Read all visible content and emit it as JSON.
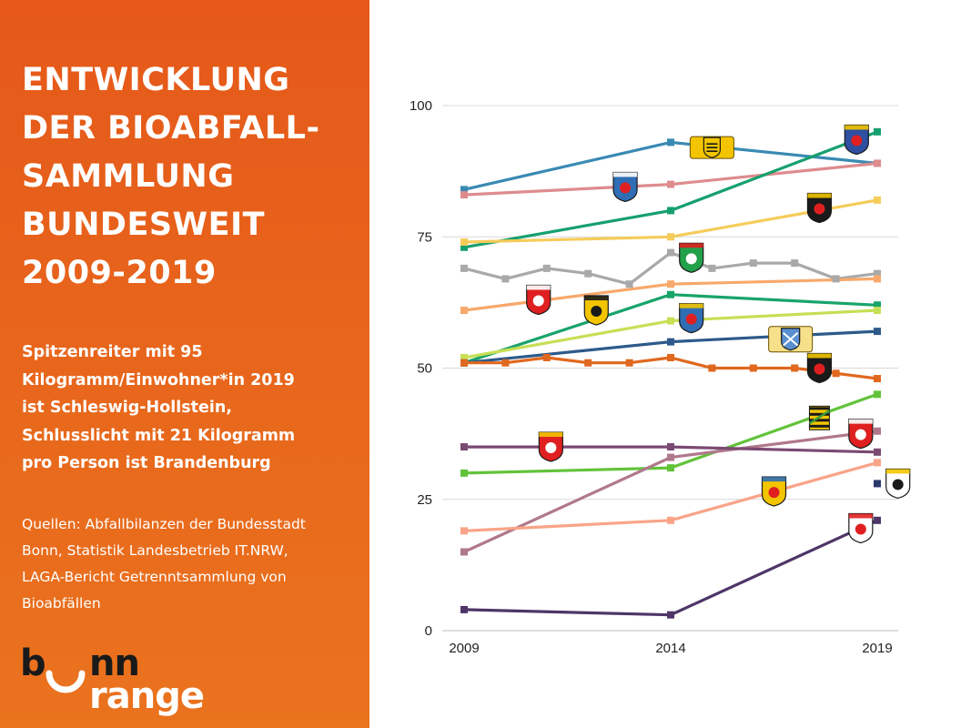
{
  "headline": [
    "ENTWICKLUNG",
    "DER BIOABFALL-",
    "SAMMLUNG",
    "BUNDESWEIT",
    "2009-2019"
  ],
  "summary": [
    "Spitzenreiter mit 95",
    "Kilogramm/Einwohner*in 2019",
    "ist Schleswig-Hollstein,",
    "Schlusslicht mit 21 Kilogramm",
    "pro Person ist Brandenburg"
  ],
  "sources": [
    "Quellen: Abfallbilanzen der Bundesstadt",
    "Bonn, Statistik Landesbetrieb IT.NRW,",
    "LAGA-Bericht Getrenntsammlung von",
    "Bioabfällen"
  ],
  "logo": {
    "b": "b",
    "nn": "nn",
    "range": "range"
  },
  "colors": {
    "panel": "#e8661c",
    "grid": "#d9d9d9"
  },
  "chart_data": {
    "type": "line",
    "xlim": [
      2009,
      2019
    ],
    "ylim": [
      0,
      100
    ],
    "x_ticks": [
      2009,
      2014,
      2019
    ],
    "y_ticks": [
      0,
      25,
      50,
      75,
      100
    ],
    "grid": true,
    "xlabel": "",
    "ylabel": "",
    "series": [
      {
        "color": "#3a8ab3",
        "points": [
          [
            2009,
            84
          ],
          [
            2014,
            93
          ],
          [
            2019,
            89
          ]
        ],
        "emblem": "baden-wuerttemberg"
      },
      {
        "color": "#de8b8e",
        "points": [
          [
            2009,
            83
          ],
          [
            2014,
            85
          ],
          [
            2019,
            89
          ]
        ],
        "emblem": "hessen"
      },
      {
        "color": "#16a06e",
        "points": [
          [
            2009,
            73
          ],
          [
            2014,
            80
          ],
          [
            2019,
            95
          ]
        ],
        "emblem": "schleswig-holstein"
      },
      {
        "color": "#f5cc5a",
        "points": [
          [
            2009,
            74
          ],
          [
            2014,
            75
          ],
          [
            2019,
            82
          ]
        ],
        "emblem": "rheinland-pfalz"
      },
      {
        "color": "#a9a9a9",
        "points": [
          [
            2009,
            69
          ],
          [
            2010,
            67
          ],
          [
            2011,
            69
          ],
          [
            2012,
            68
          ],
          [
            2013,
            66
          ],
          [
            2014,
            72
          ],
          [
            2015,
            69
          ],
          [
            2016,
            70
          ],
          [
            2017,
            70
          ],
          [
            2018,
            67
          ],
          [
            2019,
            68
          ]
        ],
        "emblem": "nordrhein-westfalen"
      },
      {
        "color": "#f8a86a",
        "points": [
          [
            2009,
            61
          ],
          [
            2014,
            66
          ],
          [
            2019,
            67
          ]
        ],
        "emblem": "niedersachsen"
      },
      {
        "color": "#19a46a",
        "points": [
          [
            2009,
            51
          ],
          [
            2014,
            64
          ],
          [
            2019,
            62
          ]
        ],
        "emblem": "sachsen-anhalt"
      },
      {
        "color": "#c7df55",
        "points": [
          [
            2009,
            52
          ],
          [
            2014,
            59
          ],
          [
            2019,
            61
          ]
        ],
        "emblem": "saarland"
      },
      {
        "color": "#2d5a8a",
        "points": [
          [
            2009,
            51
          ],
          [
            2014,
            55
          ],
          [
            2019,
            57
          ]
        ],
        "emblem": "bayern"
      },
      {
        "color": "#e0681f",
        "points": [
          [
            2009,
            51
          ],
          [
            2010,
            51
          ],
          [
            2011,
            52
          ],
          [
            2012,
            51
          ],
          [
            2013,
            51
          ],
          [
            2014,
            52
          ],
          [
            2015,
            50
          ],
          [
            2016,
            50
          ],
          [
            2017,
            50
          ],
          [
            2018,
            49
          ],
          [
            2019,
            48
          ]
        ],
        "emblem": "bonn"
      },
      {
        "color": "#62c33a",
        "points": [
          [
            2009,
            30
          ],
          [
            2014,
            31
          ],
          [
            2019,
            45
          ]
        ],
        "emblem": "sachsen"
      },
      {
        "color": "#b0788d",
        "points": [
          [
            2009,
            15
          ],
          [
            2014,
            33
          ],
          [
            2019,
            38
          ]
        ],
        "emblem": "hamburg"
      },
      {
        "color": "#7a4a72",
        "points": [
          [
            2009,
            35
          ],
          [
            2014,
            35
          ],
          [
            2019,
            34
          ]
        ],
        "emblem": "bremen"
      },
      {
        "color": "#f9a488",
        "points": [
          [
            2009,
            19
          ],
          [
            2014,
            21
          ],
          [
            2019,
            32
          ]
        ],
        "emblem": "mecklenburg-vorpommern"
      },
      {
        "color": "#2c3a6e",
        "points": [
          [
            2019,
            28
          ]
        ],
        "emblem": "berlin"
      },
      {
        "color": "#4e3668",
        "points": [
          [
            2009,
            4
          ],
          [
            2014,
            3
          ],
          [
            2019,
            21
          ]
        ],
        "emblem": "brandenburg"
      }
    ],
    "emblems": [
      {
        "name": "baden-wuerttemberg",
        "x": 2015,
        "y": 92,
        "shape": "lions"
      },
      {
        "name": "hessen",
        "x": 2012.9,
        "y": 84.5,
        "shape": "shield",
        "c1": "#2f6db5",
        "c2": "#e02020",
        "c3": "#ffffff"
      },
      {
        "name": "schleswig-holstein",
        "x": 2018.5,
        "y": 93.5,
        "shape": "shield",
        "c1": "#2f4fa0",
        "c2": "#e02020",
        "c3": "#f2c500"
      },
      {
        "name": "rheinland-pfalz",
        "x": 2017.6,
        "y": 80.5,
        "shape": "shield",
        "c1": "#1a1a1a",
        "c2": "#e02020",
        "c3": "#f2c500"
      },
      {
        "name": "nordrhein-westfalen",
        "x": 2014.5,
        "y": 71,
        "shape": "shield",
        "c1": "#22a04a",
        "c2": "#ffffff",
        "c3": "#e02020"
      },
      {
        "name": "niedersachsen",
        "x": 2010.8,
        "y": 63,
        "shape": "shield",
        "c1": "#e02020",
        "c2": "#ffffff",
        "c3": "#ffffff"
      },
      {
        "name": "sachsen-anhalt",
        "x": 2012.2,
        "y": 61,
        "shape": "shield",
        "c1": "#f2c500",
        "c2": "#1a1a1a",
        "c3": "#1a1a1a"
      },
      {
        "name": "saarland",
        "x": 2014.5,
        "y": 59.5,
        "shape": "shield",
        "c1": "#2f6db5",
        "c2": "#e02020",
        "c3": "#f2c500"
      },
      {
        "name": "bayern",
        "x": 2016.9,
        "y": 55.5,
        "shape": "lions-bayern"
      },
      {
        "name": "bonn",
        "x": 2017.6,
        "y": 50,
        "shape": "shield",
        "c1": "#1a1a1a",
        "c2": "#e02020",
        "c3": "#f2c500"
      },
      {
        "name": "sachsen",
        "x": 2017.6,
        "y": 40.5,
        "shape": "stripes",
        "c1": "#1a1a1a",
        "c2": "#f2c500",
        "c3": "#3a9a3a"
      },
      {
        "name": "hamburg",
        "x": 2018.6,
        "y": 37.5,
        "shape": "shield",
        "c1": "#e02020",
        "c2": "#ffffff",
        "c3": "#ffffff"
      },
      {
        "name": "bremen",
        "x": 2011.1,
        "y": 35,
        "shape": "shield",
        "c1": "#e02020",
        "c2": "#ffffff",
        "c3": "#f2c500"
      },
      {
        "name": "mecklenburg-vorpommern",
        "x": 2016.5,
        "y": 26.5,
        "shape": "shield",
        "c1": "#f2c500",
        "c2": "#e02020",
        "c3": "#2f6db5"
      },
      {
        "name": "berlin",
        "x": 2019.5,
        "y": 28,
        "shape": "shield",
        "c1": "#ffffff",
        "c2": "#1a1a1a",
        "c3": "#f2c500"
      },
      {
        "name": "brandenburg",
        "x": 2018.6,
        "y": 19.5,
        "shape": "shield",
        "c1": "#ffffff",
        "c2": "#e02020",
        "c3": "#e02020"
      }
    ]
  }
}
